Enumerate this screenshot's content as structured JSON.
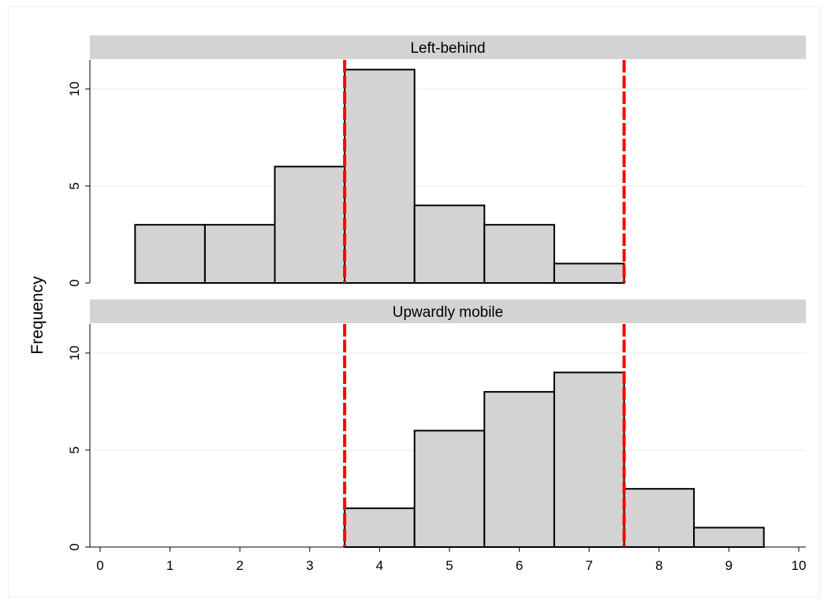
{
  "chart_data": {
    "type": "bar",
    "subtype": "histogram",
    "ylabel": "Frequency",
    "xlabel": "",
    "xlim": [
      0,
      10
    ],
    "ylim": [
      0,
      11.5
    ],
    "x_ticks": [
      0,
      1,
      2,
      3,
      4,
      5,
      6,
      7,
      8,
      9,
      10
    ],
    "y_ticks": [
      0,
      5,
      10
    ],
    "bin_width": 1,
    "reference_lines": [
      3.5,
      7.5
    ],
    "grid": true,
    "colors": {
      "bar_fill": "#d3d3d3",
      "bar_stroke": "#000000",
      "reference_line": "#ff0000",
      "strip": "#d3d3d3",
      "grid": "#eaeaea"
    },
    "panels": [
      {
        "name": "Left-behind",
        "x": [
          1,
          2,
          3,
          4,
          5,
          6,
          7
        ],
        "values": [
          3,
          3,
          6,
          11,
          4,
          3,
          1
        ]
      },
      {
        "name": "Upwardly mobile",
        "x": [
          4,
          5,
          6,
          7,
          8,
          9
        ],
        "values": [
          2,
          6,
          8,
          9,
          3,
          1
        ]
      }
    ]
  }
}
